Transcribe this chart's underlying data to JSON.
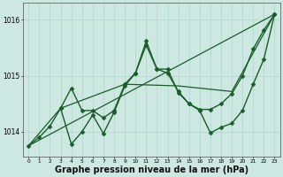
{
  "background_color": "#cce8e0",
  "grid_color": "#b0d4cc",
  "line_color": "#1a5c2a",
  "marker_color": "#1a5c2a",
  "xlabel": "Graphe pression niveau de la mer (hPa)",
  "xlabel_fontsize": 7.0,
  "xlim": [
    -0.5,
    23.5
  ],
  "ylim": [
    1013.55,
    1016.3
  ],
  "yticks": [
    1014,
    1015,
    1016
  ],
  "xticks": [
    0,
    1,
    2,
    3,
    4,
    5,
    6,
    7,
    8,
    9,
    10,
    11,
    12,
    13,
    14,
    15,
    16,
    17,
    18,
    19,
    20,
    21,
    22,
    23
  ],
  "series": [
    {
      "x": [
        0,
        23
      ],
      "y": [
        1013.75,
        1016.1
      ],
      "marker": false,
      "markersize": 0,
      "linewidth": 0.9,
      "linestyle": "-"
    },
    {
      "x": [
        0,
        3,
        9,
        14,
        19,
        23
      ],
      "y": [
        1013.75,
        1014.42,
        1014.85,
        1014.82,
        1014.72,
        1016.1
      ],
      "marker": false,
      "markersize": 0,
      "linewidth": 0.9,
      "linestyle": "-"
    },
    {
      "x": [
        0,
        1,
        2,
        3,
        4,
        5,
        6,
        7,
        8,
        9,
        10,
        11,
        12,
        13,
        14,
        15,
        16,
        17,
        18,
        19,
        20,
        21,
        22,
        23
      ],
      "y": [
        1013.75,
        1013.9,
        1014.1,
        1014.42,
        1013.78,
        1014.0,
        1014.3,
        1013.97,
        1014.35,
        1014.82,
        1015.05,
        1015.62,
        1015.12,
        1015.12,
        1014.7,
        1014.5,
        1014.4,
        1014.4,
        1014.5,
        1014.68,
        1015.0,
        1015.48,
        1015.82,
        1016.1
      ],
      "marker": "D",
      "markersize": 2.5,
      "linewidth": 1.0,
      "linestyle": "-"
    },
    {
      "x": [
        3,
        4,
        5,
        6,
        7,
        8,
        9,
        10,
        11,
        12,
        13,
        14,
        15,
        16,
        17,
        18,
        19,
        20,
        21,
        22,
        23
      ],
      "y": [
        1014.42,
        1014.78,
        1014.38,
        1014.38,
        1014.25,
        1014.38,
        1014.85,
        1015.05,
        1015.55,
        1015.12,
        1015.05,
        1014.72,
        1014.5,
        1014.38,
        1013.98,
        1014.08,
        1014.15,
        1014.38,
        1014.85,
        1015.3,
        1016.1
      ],
      "marker": "D",
      "markersize": 2.5,
      "linewidth": 1.0,
      "linestyle": "-"
    }
  ]
}
